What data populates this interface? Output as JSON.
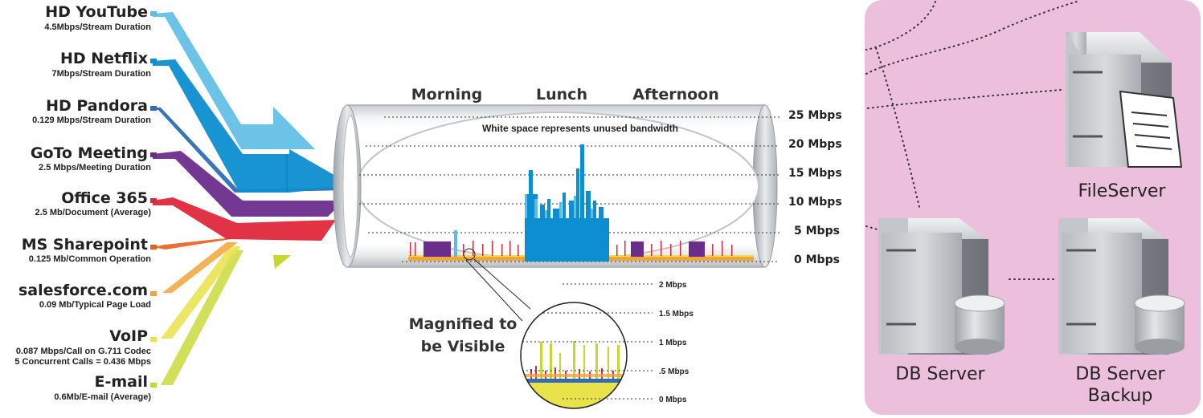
{
  "applications": [
    {
      "name": "HD YouTube",
      "detail": "4.5Mbps/Stream Duration",
      "color": "#5bbce6"
    },
    {
      "name": "HD Netflix",
      "detail": "7Mbps/Stream Duration",
      "color": "#0d8ed1"
    },
    {
      "name": "HD Pandora",
      "detail": "0.129 Mbps/Stream Duration",
      "color": "#2f6db5"
    },
    {
      "name": "GoTo Meeting",
      "detail": "2.5 Mbps/Meeting Duration",
      "color": "#6b2d8c"
    },
    {
      "name": "Office 365",
      "detail": "2.5 Mb/Document (Average)",
      "color": "#e0283c"
    },
    {
      "name": "MS Sharepoint",
      "detail": "0.125 Mb/Common Operation",
      "color": "#e8601c"
    },
    {
      "name": "salesforce.com",
      "detail": "0.09 Mb/Typical Page Load",
      "color": "#f2a33a"
    },
    {
      "name": "VoIP",
      "detail": "0.087 Mbps/Call on G.711 Codec",
      "detail2": "5 Concurrent Calls = 0.436 Mbps",
      "color": "#e9e24a"
    },
    {
      "name": "E-mail",
      "detail": "0.6Mb/E-mail (Average)",
      "color": "#c5d82e"
    }
  ],
  "pipe": {
    "periods": [
      "Morning",
      "Lunch",
      "Afternoon"
    ],
    "note": "White space represents unused bandwidth",
    "scale": [
      "25 Mbps",
      "20 Mbps",
      "15 Mbps",
      "10 Mbps",
      "5 Mbps",
      "0 Mbps"
    ]
  },
  "magnifier": {
    "caption_line1": "Magnified to",
    "caption_line2": "be Visible",
    "scale": [
      "2 Mbps",
      "1.5 Mbps",
      "1 Mbps",
      ".5 Mbps",
      "0 Mbps"
    ]
  },
  "network": {
    "background_color": "#ecc0dc",
    "servers": [
      {
        "label": "FileServer"
      },
      {
        "label": "DB Server"
      },
      {
        "label": "DB Server",
        "label2": "Backup"
      }
    ]
  }
}
